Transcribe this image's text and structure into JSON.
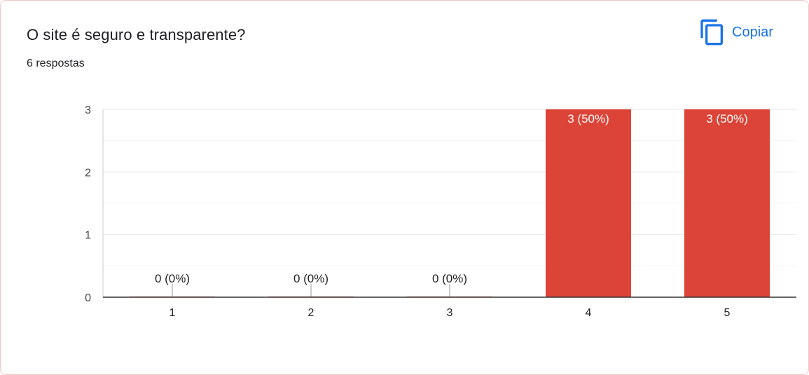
{
  "card": {
    "title": "O site é seguro e transparente?",
    "subtitle": "6 respostas",
    "copy_label": "Copiar",
    "copy_icon": "copy-icon"
  },
  "colors": {
    "bar": "#db4437",
    "accent": "#1a73e8",
    "gridline": "#e8e8e8",
    "axis": "#333333"
  },
  "chart_data": {
    "type": "bar",
    "categories": [
      "1",
      "2",
      "3",
      "4",
      "5"
    ],
    "values": [
      0,
      0,
      0,
      3,
      3
    ],
    "data_labels": [
      "0 (0%)",
      "0 (0%)",
      "0 (0%)",
      "3 (50%)",
      "3 (50%)"
    ],
    "ylim": [
      0,
      3
    ],
    "yticks": [
      "0",
      "1",
      "2",
      "3"
    ],
    "grid": true,
    "legend": "none",
    "xlabel": "",
    "ylabel": ""
  }
}
